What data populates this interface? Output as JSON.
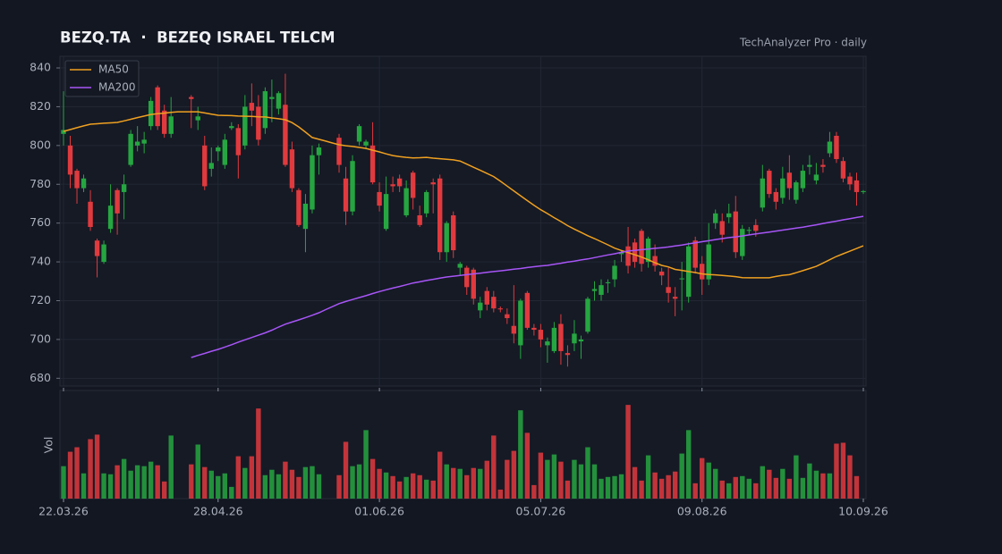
{
  "chart_data": {
    "type": "candlestick",
    "title": "BEZQ.TA  ·  BEZEQ ISRAEL TELCM",
    "subtitle": "TechAnalyzer Pro · daily",
    "volume_label": "Vol",
    "legend": "upper left",
    "grid": true,
    "up_color": "#26a641",
    "down_color": "#e03a3e",
    "ylim": [
      676,
      846
    ],
    "yticks": [
      680,
      700,
      720,
      740,
      760,
      780,
      800,
      820,
      840
    ],
    "volume_ylim": [
      0,
      120
    ],
    "categories": [
      "22.03.26",
      null,
      null,
      null,
      null,
      null,
      null,
      null,
      null,
      null,
      null,
      null,
      null,
      null,
      null,
      null,
      null,
      null,
      null,
      null,
      null,
      null,
      null,
      "28.04.26",
      null,
      null,
      null,
      null,
      null,
      null,
      null,
      null,
      null,
      null,
      null,
      null,
      null,
      null,
      null,
      null,
      null,
      null,
      null,
      null,
      null,
      null,
      null,
      "01.06.26",
      null,
      null,
      null,
      null,
      null,
      null,
      null,
      null,
      null,
      null,
      null,
      null,
      null,
      null,
      null,
      null,
      null,
      null,
      null,
      null,
      null,
      null,
      null,
      "05.07.26",
      null,
      null,
      null,
      null,
      null,
      null,
      null,
      null,
      null,
      null,
      null,
      null,
      null,
      null,
      null,
      null,
      null,
      null,
      null,
      null,
      null,
      null,
      null,
      "09.08.26",
      null,
      null,
      null,
      null,
      null,
      null,
      null,
      null,
      null,
      null,
      null,
      null,
      null,
      null,
      null,
      null,
      null,
      null,
      null,
      null,
      null,
      null,
      null,
      "10.09.26"
    ],
    "open": [
      806,
      800,
      787,
      778,
      771,
      751,
      740,
      757,
      777,
      776,
      790,
      800,
      801,
      810,
      830,
      818,
      806,
      null,
      null,
      825,
      813,
      800,
      788,
      797,
      790,
      809,
      809,
      800,
      822,
      820,
      809,
      824,
      819,
      821,
      798,
      777,
      757,
      767,
      795,
      null,
      null,
      804,
      783,
      766,
      802,
      800,
      800,
      776,
      757,
      780,
      783,
      764,
      786,
      764,
      765,
      781,
      783,
      745,
      764,
      737,
      737,
      736,
      715,
      725,
      722,
      716,
      713,
      707,
      697,
      724,
      706,
      705,
      697,
      694,
      708,
      693,
      698,
      699,
      704,
      725,
      723,
      729,
      731,
      744,
      748,
      750,
      756,
      740,
      743,
      735,
      727,
      722,
      731,
      722,
      751,
      739,
      731,
      760,
      761,
      763,
      766,
      743,
      756,
      759,
      768,
      787,
      776,
      773,
      786,
      772,
      778,
      789,
      782,
      790,
      796,
      805,
      792,
      784,
      782,
      776
    ],
    "high": [
      828,
      805,
      788,
      785,
      777,
      752,
      751,
      780,
      778,
      785,
      808,
      810,
      807,
      825,
      831,
      821,
      825,
      null,
      null,
      826,
      820,
      805,
      799,
      800,
      806,
      812,
      811,
      826,
      832,
      826,
      830,
      834,
      828,
      837,
      802,
      778,
      775,
      800,
      801,
      null,
      null,
      806,
      789,
      795,
      811,
      803,
      812,
      781,
      784,
      784,
      785,
      782,
      787,
      769,
      777,
      783,
      785,
      761,
      766,
      740,
      738,
      737,
      722,
      727,
      725,
      717,
      716,
      728,
      721,
      725,
      708,
      708,
      701,
      709,
      713,
      697,
      710,
      702,
      722,
      730,
      731,
      731,
      741,
      746,
      758,
      752,
      757,
      753,
      749,
      737,
      737,
      727,
      740,
      750,
      753,
      743,
      760,
      767,
      765,
      770,
      774,
      759,
      758,
      762,
      790,
      788,
      778,
      789,
      795,
      782,
      790,
      795,
      791,
      793,
      807,
      807,
      794,
      786,
      786,
      777
    ],
    "low": [
      800,
      778,
      770,
      776,
      756,
      732,
      739,
      755,
      754,
      762,
      789,
      797,
      796,
      808,
      808,
      804,
      804,
      null,
      null,
      809,
      808,
      777,
      784,
      792,
      788,
      808,
      783,
      798,
      810,
      800,
      806,
      812,
      816,
      789,
      776,
      758,
      745,
      765,
      785,
      null,
      null,
      786,
      759,
      764,
      800,
      798,
      780,
      766,
      756,
      776,
      776,
      763,
      767,
      758,
      763,
      765,
      741,
      740,
      742,
      733,
      723,
      718,
      711,
      715,
      714,
      714,
      708,
      698,
      690,
      705,
      702,
      696,
      688,
      693,
      687,
      686,
      694,
      690,
      703,
      720,
      720,
      724,
      727,
      740,
      734,
      737,
      735,
      737,
      735,
      728,
      719,
      712,
      715,
      719,
      734,
      723,
      728,
      757,
      750,
      760,
      742,
      741,
      754,
      753,
      766,
      773,
      767,
      770,
      772,
      770,
      776,
      785,
      780,
      786,
      794,
      791,
      781,
      777,
      769,
      775
    ],
    "close": [
      808,
      785,
      778,
      783,
      758,
      743,
      749,
      769,
      765,
      780,
      806,
      802,
      803,
      823,
      810,
      806,
      815,
      null,
      null,
      824,
      815,
      779,
      791,
      799,
      803,
      810,
      795,
      820,
      818,
      803,
      828,
      825,
      827,
      790,
      778,
      759,
      770,
      795,
      799,
      null,
      null,
      790,
      766,
      792,
      810,
      802,
      781,
      769,
      775,
      779,
      779,
      778,
      773,
      759,
      776,
      780,
      745,
      760,
      746,
      739,
      727,
      721,
      719,
      718,
      716,
      715.5,
      711,
      703,
      720,
      706,
      705,
      700,
      699,
      706,
      694,
      692,
      703,
      700,
      721,
      726,
      728,
      729.5,
      738,
      745,
      738,
      740,
      739,
      752,
      738,
      733,
      724,
      721,
      731.5,
      748,
      737,
      731,
      749,
      765,
      754,
      765,
      745,
      757,
      756.5,
      756,
      783,
      775,
      771,
      783,
      778,
      781,
      787,
      790,
      785,
      789,
      802,
      793,
      783,
      780,
      776,
      776.5
    ],
    "volume": [
      36,
      52,
      57,
      28,
      66,
      71,
      28,
      27,
      37,
      44,
      31,
      37,
      36,
      41,
      37,
      19,
      70,
      null,
      null,
      38,
      60,
      35,
      31,
      25,
      28,
      13,
      47,
      34,
      47,
      100,
      26,
      32,
      27,
      41,
      32,
      24,
      35,
      36,
      27,
      null,
      null,
      26,
      63,
      36,
      38,
      76,
      44,
      33,
      29,
      25,
      19,
      24,
      28,
      26,
      21,
      20,
      52,
      38,
      34,
      33,
      26,
      34,
      33,
      42,
      70,
      10,
      43,
      53,
      98,
      73,
      15,
      51,
      43,
      49,
      41,
      20,
      43,
      38,
      57,
      38,
      22,
      24,
      25,
      27,
      104,
      35,
      20,
      48,
      29,
      22,
      26,
      30,
      50,
      76,
      17,
      45,
      40,
      33,
      20,
      17,
      24,
      25,
      22,
      17,
      36,
      32,
      23,
      33,
      22,
      48,
      23,
      39,
      31,
      28,
      28,
      61,
      62,
      48,
      25,
      null
    ],
    "series": [
      {
        "name": "MA50",
        "color": "#f0a020",
        "values": [
          807.3,
          808.2,
          809.2,
          810.1,
          811,
          811.2,
          811.5,
          811.7,
          811.9,
          812.7,
          813.5,
          814.4,
          815.2,
          816,
          816.4,
          816.7,
          817.1,
          817.4,
          817.4,
          817.4,
          817.4,
          816.8,
          816.2,
          815.6,
          815.5,
          815.4,
          815.2,
          815.1,
          815,
          814.8,
          814.7,
          814.2,
          813.8,
          813.3,
          811.8,
          809.6,
          806.9,
          804.1,
          803.2,
          802.3,
          801.3,
          800.4,
          799.9,
          799.5,
          799,
          798.5,
          797.6,
          796.7,
          795.7,
          794.8,
          794.3,
          793.9,
          793.6,
          793.7,
          793.9,
          793.5,
          793.2,
          792.9,
          792.6,
          792,
          790.4,
          788.8,
          787.2,
          785.6,
          784,
          781.6,
          779.1,
          776.6,
          774.1,
          771.6,
          769.2,
          766.9,
          764.9,
          762.8,
          760.8,
          758.7,
          756.9,
          755.2,
          753.5,
          752,
          750.4,
          748.8,
          747.1,
          745.9,
          744.8,
          743.7,
          742.5,
          741.1,
          739.6,
          738.2,
          737.4,
          736.1,
          735.6,
          735,
          734.5,
          733.8,
          733.5,
          733.3,
          733,
          732.7,
          732.4,
          731.9,
          731.8,
          731.8,
          731.8,
          731.8,
          732.5,
          733.1,
          733.4,
          734.4,
          735.5,
          736.6,
          737.7,
          739.4,
          741.1,
          742.8,
          744.2,
          745.5,
          746.9,
          748.3
        ]
      },
      {
        "name": "MA200",
        "color": "#a855f7",
        "values": [
          null,
          null,
          null,
          null,
          null,
          null,
          null,
          null,
          null,
          null,
          null,
          null,
          null,
          null,
          null,
          null,
          null,
          null,
          null,
          690.7,
          691.8,
          692.8,
          693.9,
          694.9,
          696.1,
          697.3,
          698.6,
          699.8,
          701,
          702.2,
          703.4,
          704.8,
          706.4,
          707.9,
          709,
          710.1,
          711.3,
          712.5,
          713.8,
          715.4,
          716.9,
          718.5,
          719.6,
          720.6,
          721.6,
          722.6,
          723.7,
          724.7,
          725.6,
          726.5,
          727.3,
          728.2,
          729.1,
          729.7,
          730.4,
          731,
          731.6,
          732.2,
          732.6,
          733,
          733.4,
          733.8,
          734.2,
          734.6,
          735,
          735.4,
          735.8,
          736.2,
          736.6,
          737.1,
          737.5,
          737.9,
          738.2,
          738.8,
          739.3,
          739.9,
          740.4,
          741,
          741.5,
          742.2,
          742.9,
          743.6,
          744.2,
          744.9,
          745.6,
          745.9,
          746.3,
          746.6,
          747,
          747.3,
          747.7,
          748.2,
          748.7,
          749.3,
          749.8,
          750.4,
          750.9,
          751.5,
          752,
          752.5,
          752.9,
          753.4,
          753.9,
          754.4,
          754.9,
          755.4,
          755.9,
          756.4,
          756.9,
          757.4,
          757.9,
          758.5,
          759.1,
          759.8,
          760.4,
          761,
          761.7,
          762.3,
          762.9,
          763.5
        ]
      }
    ]
  }
}
